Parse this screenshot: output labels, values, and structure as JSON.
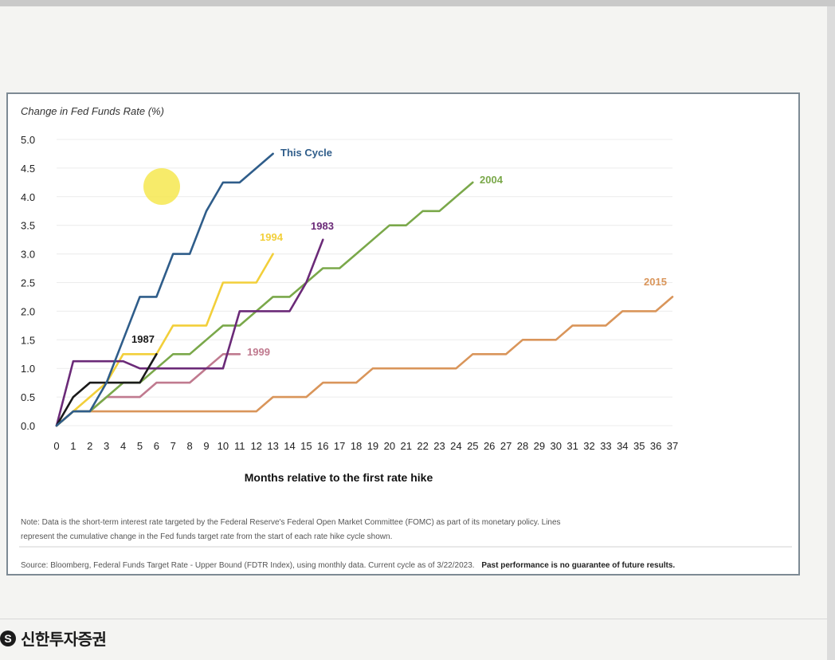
{
  "chart_data": {
    "type": "line",
    "ylabel": "Change in Fed Funds Rate (%)",
    "xlabel": "Months relative to the first rate hike",
    "ylim": [
      0,
      5
    ],
    "xlim": [
      0,
      37
    ],
    "yticks": [
      "0.0",
      "0.5",
      "1.0",
      "1.5",
      "2.0",
      "2.5",
      "3.0",
      "3.5",
      "4.0",
      "4.5",
      "5.0"
    ],
    "xticks": [
      "0",
      "1",
      "2",
      "3",
      "4",
      "5",
      "6",
      "7",
      "8",
      "9",
      "10",
      "11",
      "12",
      "13",
      "14",
      "15",
      "16",
      "17",
      "18",
      "19",
      "20",
      "21",
      "22",
      "23",
      "24",
      "25",
      "26",
      "27",
      "28",
      "29",
      "30",
      "31",
      "32",
      "33",
      "34",
      "35",
      "36",
      "37"
    ],
    "grid": true,
    "series": [
      {
        "name": "This Cycle",
        "color": "#2f5d8a",
        "x": [
          0,
          1,
          2,
          3,
          4,
          5,
          6,
          7,
          8,
          9,
          10,
          11,
          12,
          13
        ],
        "y": [
          0,
          0.25,
          0.25,
          0.75,
          1.5,
          2.25,
          2.25,
          3.0,
          3.0,
          3.75,
          4.25,
          4.25,
          4.5,
          4.75
        ]
      },
      {
        "name": "2004",
        "color": "#7aa84a",
        "x": [
          0,
          1,
          2,
          3,
          4,
          5,
          6,
          7,
          8,
          9,
          10,
          11,
          12,
          13,
          14,
          15,
          16,
          17,
          18,
          19,
          20,
          21,
          22,
          23,
          24,
          25
        ],
        "y": [
          0,
          0.25,
          0.25,
          0.5,
          0.75,
          0.75,
          1.0,
          1.25,
          1.25,
          1.5,
          1.75,
          1.75,
          2.0,
          2.25,
          2.25,
          2.5,
          2.75,
          2.75,
          3.0,
          3.25,
          3.5,
          3.5,
          3.75,
          3.75,
          4.0,
          4.25
        ]
      },
      {
        "name": "1994",
        "color": "#f2cf3a",
        "x": [
          0,
          1,
          2,
          3,
          4,
          5,
          6,
          7,
          8,
          9,
          10,
          11,
          12,
          13
        ],
        "y": [
          0,
          0.25,
          0.5,
          0.75,
          1.25,
          1.25,
          1.25,
          1.75,
          1.75,
          1.75,
          2.5,
          2.5,
          2.5,
          3.0
        ]
      },
      {
        "name": "1983",
        "color": "#6b2a78",
        "x": [
          0,
          1,
          2,
          3,
          4,
          5,
          6,
          7,
          8,
          9,
          10,
          11,
          12,
          13,
          14,
          15,
          16
        ],
        "y": [
          0,
          1.125,
          1.125,
          1.125,
          1.125,
          1.0,
          1.0,
          1.0,
          1.0,
          1.0,
          1.0,
          2.0,
          2.0,
          2.0,
          2.0,
          2.5,
          3.25
        ]
      },
      {
        "name": "1987",
        "color": "#1a1a1a",
        "x": [
          0,
          1,
          2,
          3,
          4,
          5,
          6
        ],
        "y": [
          0,
          0.5,
          0.75,
          0.75,
          0.75,
          0.75,
          1.25
        ]
      },
      {
        "name": "1999",
        "color": "#c07a8f",
        "x": [
          0,
          1,
          2,
          3,
          4,
          5,
          6,
          7,
          8,
          9,
          10,
          11
        ],
        "y": [
          0,
          0.25,
          0.25,
          0.5,
          0.5,
          0.5,
          0.75,
          0.75,
          0.75,
          1.0,
          1.25,
          1.25
        ]
      },
      {
        "name": "2015",
        "color": "#d9955a",
        "x": [
          0,
          1,
          2,
          3,
          4,
          5,
          6,
          7,
          8,
          9,
          10,
          11,
          12,
          13,
          14,
          15,
          16,
          17,
          18,
          19,
          20,
          21,
          22,
          23,
          24,
          25,
          26,
          27,
          28,
          29,
          30,
          31,
          32,
          33,
          34,
          35,
          36,
          37
        ],
        "y": [
          0,
          0.25,
          0.25,
          0.25,
          0.25,
          0.25,
          0.25,
          0.25,
          0.25,
          0.25,
          0.25,
          0.25,
          0.25,
          0.5,
          0.5,
          0.5,
          0.75,
          0.75,
          0.75,
          1.0,
          1.0,
          1.0,
          1.0,
          1.0,
          1.0,
          1.25,
          1.25,
          1.25,
          1.5,
          1.5,
          1.5,
          1.75,
          1.75,
          1.75,
          2.0,
          2.0,
          2.0,
          2.25
        ]
      }
    ],
    "note": "Note: Data is the short-term interest rate targeted by the Federal Reserve's Federal Open Market Committee (FOMC) as part of its monetary policy.  Lines represent the cumulative change in the Fed funds target rate from the start of each rate hike cycle shown.",
    "source": "Source: Bloomberg, Federal Funds Target Rate - Upper Bound (FDTR Index), using monthly data.  Current cycle as of 3/22/2023.",
    "disclaimer": "Past performance is no guarantee of future results."
  },
  "brand": {
    "icon": "shinhan-logo-icon",
    "name": "신한투자증권"
  }
}
